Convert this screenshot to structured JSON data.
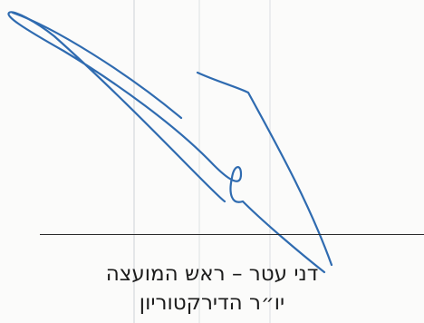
{
  "signatory": {
    "name_line": "דני עטר – ראש המועצה",
    "role_line": "יו״ר הדירקטוריון"
  },
  "colors": {
    "paper": "#fbfbfa",
    "ink": "#2f6bb0",
    "rule": "#2a2a2a",
    "text": "#1c1c1c"
  }
}
